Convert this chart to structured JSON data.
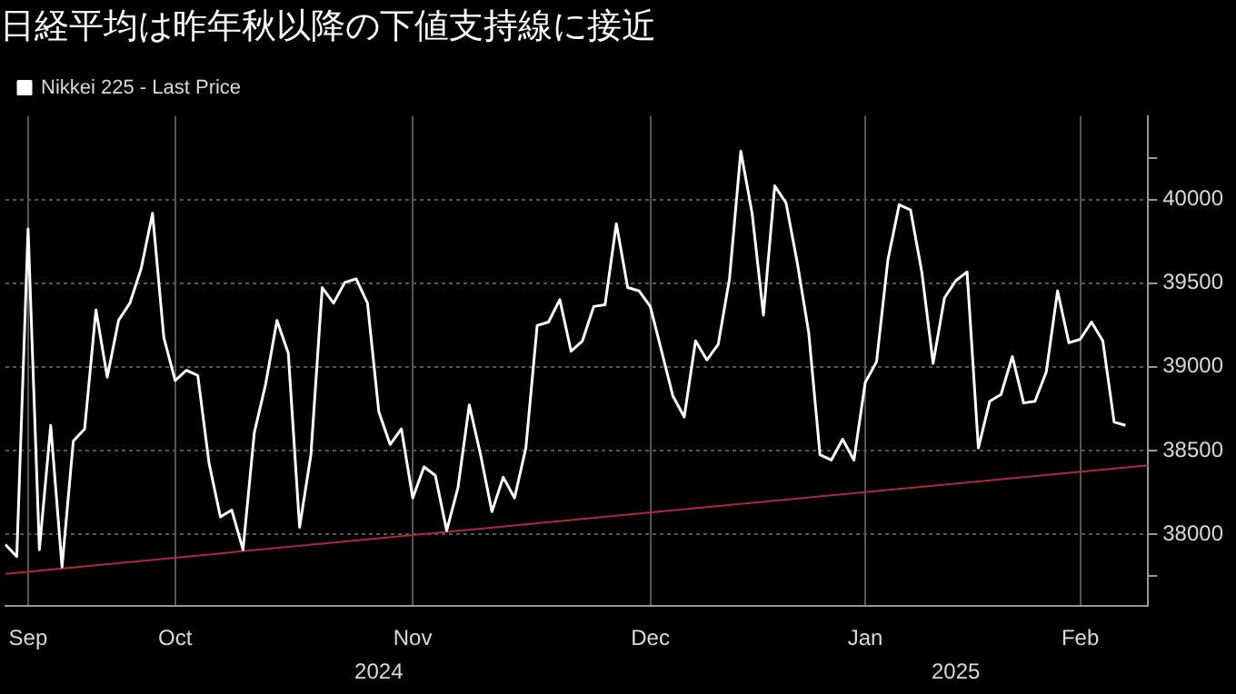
{
  "chart_data": {
    "type": "line",
    "title": "日経平均は昨年秋以降の下値支持線に接近",
    "categories": [
      null,
      null,
      "Sep",
      null,
      null,
      null,
      null,
      null,
      null,
      null,
      null,
      null,
      null,
      null,
      null,
      "Oct",
      null,
      null,
      null,
      null,
      null,
      null,
      null,
      null,
      null,
      null,
      null,
      null,
      null,
      null,
      null,
      null,
      null,
      null,
      null,
      null,
      "Nov",
      null,
      null,
      null,
      null,
      null,
      null,
      null,
      null,
      null,
      null,
      null,
      null,
      null,
      null,
      null,
      null,
      null,
      null,
      null,
      null,
      "Dec",
      null,
      null,
      null,
      null,
      null,
      null,
      null,
      null,
      null,
      null,
      null,
      null,
      null,
      null,
      null,
      null,
      null,
      null,
      "Jan",
      null,
      null,
      null,
      null,
      null,
      null,
      null,
      null,
      null,
      null,
      null,
      null,
      null,
      null,
      null,
      null,
      null,
      null,
      "Feb",
      null,
      null,
      null,
      null,
      null,
      null
    ],
    "series": [
      {
        "name": "Nikkei 225 - Last Price",
        "color": "#ffffff",
        "values": [
          37938,
          37866,
          39825,
          37907,
          38650,
          37804,
          38557,
          38629,
          39340,
          38938,
          39278,
          39381,
          39588,
          39918,
          39175,
          38918,
          38979,
          38948,
          38423,
          38103,
          38144,
          37907,
          38608,
          38897,
          39278,
          39082,
          38041,
          38474,
          39474,
          39381,
          39505,
          39526,
          39381,
          38732,
          38536,
          38629,
          38216,
          38402,
          38350,
          38021,
          38278,
          38773,
          38474,
          38134,
          38340,
          38216,
          38515,
          39247,
          39268,
          39402,
          39093,
          39155,
          39361,
          39371,
          39856,
          39474,
          39454,
          39361,
          39093,
          38825,
          38701,
          39155,
          39041,
          39134,
          39526,
          40289,
          39918,
          39309,
          40082,
          39979,
          39619,
          39206,
          38474,
          38443,
          38567,
          38443,
          38907,
          39031,
          39639,
          39969,
          39938,
          39567,
          39021,
          39412,
          39515,
          39567,
          38515,
          38794,
          38835,
          39062,
          38784,
          38794,
          38969,
          39454,
          39144,
          39165,
          39268,
          39155,
          38670,
          38650,
          null,
          null
        ]
      },
      {
        "type": "line",
        "color": "#b0283c",
        "values": [
          37763,
          null,
          null,
          null,
          null,
          null,
          null,
          null,
          null,
          null,
          null,
          null,
          null,
          null,
          null,
          null,
          null,
          null,
          null,
          null,
          null,
          null,
          null,
          null,
          null,
          null,
          null,
          null,
          null,
          null,
          null,
          null,
          null,
          null,
          null,
          null,
          null,
          null,
          null,
          null,
          null,
          null,
          null,
          null,
          null,
          null,
          null,
          null,
          null,
          null,
          null,
          null,
          null,
          null,
          null,
          null,
          null,
          null,
          null,
          null,
          null,
          null,
          null,
          null,
          null,
          null,
          null,
          null,
          null,
          null,
          null,
          null,
          null,
          null,
          null,
          null,
          null,
          null,
          null,
          null,
          null,
          null,
          null,
          null,
          null,
          null,
          null,
          null,
          null,
          null,
          null,
          null,
          null,
          null,
          null,
          null,
          null,
          null,
          null,
          null,
          null,
          38412
        ]
      }
    ],
    "ylim": [
      37570,
      40500
    ],
    "yticks": [
      {
        "value": 37750,
        "label": null
      },
      38000,
      38500,
      39000,
      39500,
      40000,
      {
        "value": 40250,
        "label": null
      }
    ],
    "annotations": [
      "2024",
      "2025"
    ],
    "grid": true,
    "legend": "top left",
    "marker": "none",
    "line_style": "solid"
  }
}
